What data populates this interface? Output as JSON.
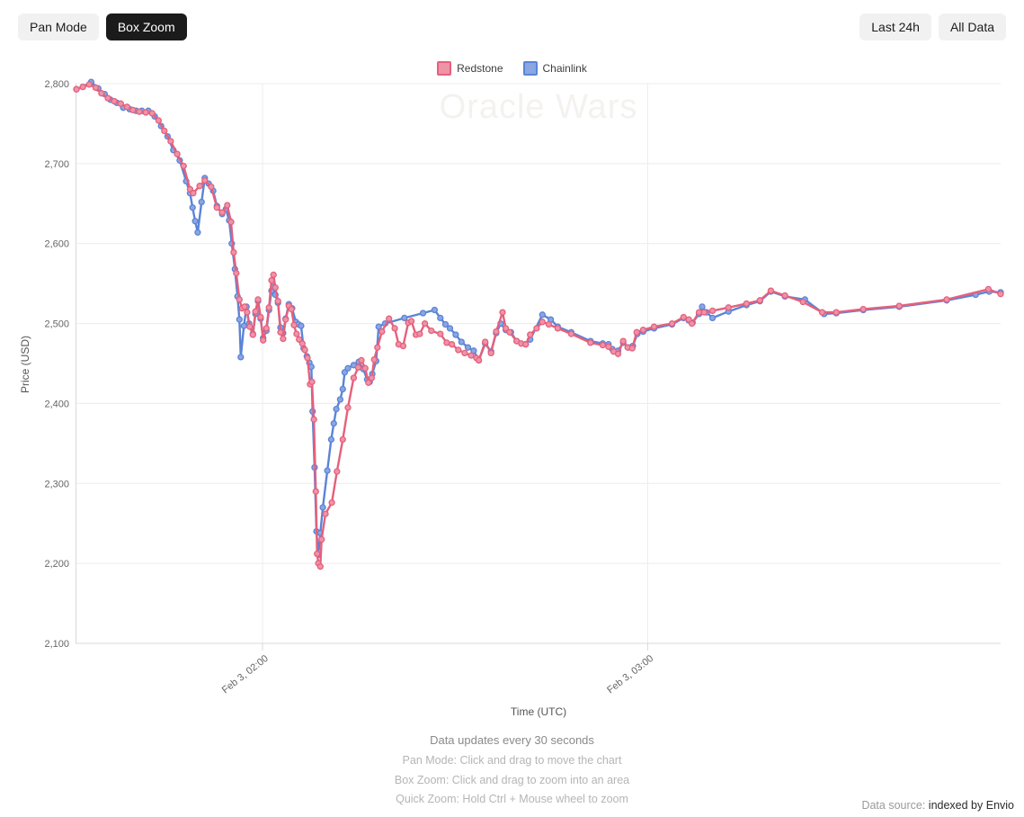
{
  "toolbar": {
    "pan_mode_label": "Pan Mode",
    "box_zoom_label": "Box Zoom",
    "last_24h_label": "Last 24h",
    "all_data_label": "All Data",
    "active_button": "Box Zoom"
  },
  "watermark": "Oracle Wars",
  "colors": {
    "button_bg": "#f1f1f1",
    "button_active_bg": "#1b1b1b",
    "grid": "#ececec",
    "axis_line": "#d9d9d9",
    "redstone": "#e5607c",
    "chainlink": "#5b84d6"
  },
  "footer": {
    "line1": "Data updates every 30 seconds",
    "line2": "Pan Mode: Click and drag to move the chart",
    "line3": "Box Zoom: Click and drag to zoom into an area",
    "line4": "Quick Zoom: Hold Ctrl + Mouse wheel to zoom"
  },
  "datasource": {
    "prefix": "Data source:",
    "text": "indexed by Envio"
  },
  "chart_data": {
    "type": "line",
    "title": "Oracle Wars",
    "xlabel": "Time (UTC)",
    "ylabel": "Price (USD)",
    "x_unit": "minutes after Feb 3 00:00 UTC (data every 30 s)",
    "x_range": [
      91,
      235
    ],
    "y_range": [
      2100,
      2800
    ],
    "y_ticks": [
      2100,
      2200,
      2300,
      2400,
      2500,
      2600,
      2700,
      2800
    ],
    "x_ticks": [
      {
        "t": 120,
        "label": "Feb 3, 02:00"
      },
      {
        "t": 180,
        "label": "Feb 3, 03:00"
      }
    ],
    "grid": true,
    "legend_position": "top",
    "series": [
      {
        "name": "Redstone",
        "color": "#e5607c",
        "point_fill": "#ef93a7",
        "data": [
          [
            91,
            2793
          ],
          [
            92,
            2796
          ],
          [
            93,
            2799
          ],
          [
            94,
            2795
          ],
          [
            94.9,
            2788
          ],
          [
            95.9,
            2782
          ],
          [
            96.9,
            2778
          ],
          [
            97.9,
            2775
          ],
          [
            98.9,
            2771
          ],
          [
            99.8,
            2767
          ],
          [
            100.8,
            2765
          ],
          [
            101.8,
            2764
          ],
          [
            102.8,
            2763
          ],
          [
            103.8,
            2754
          ],
          [
            104.7,
            2741
          ],
          [
            105.7,
            2728
          ],
          [
            106.7,
            2712
          ],
          [
            107.7,
            2697
          ],
          [
            108.7,
            2668
          ],
          [
            109.2,
            2663
          ],
          [
            110.2,
            2672
          ],
          [
            111,
            2679
          ],
          [
            112,
            2671
          ],
          [
            112.9,
            2645
          ],
          [
            113.7,
            2639
          ],
          [
            114.5,
            2648
          ],
          [
            115.1,
            2627
          ],
          [
            115.5,
            2589
          ],
          [
            115.9,
            2563
          ],
          [
            116.4,
            2530
          ],
          [
            116.8,
            2519
          ],
          [
            117.2,
            2521
          ],
          [
            117.6,
            2514
          ],
          [
            118,
            2496
          ],
          [
            118.5,
            2486
          ],
          [
            118.9,
            2515
          ],
          [
            119.3,
            2530
          ],
          [
            119.7,
            2508
          ],
          [
            120.1,
            2479
          ],
          [
            120.6,
            2494
          ],
          [
            121,
            2520
          ],
          [
            121.4,
            2554
          ],
          [
            121.7,
            2561
          ],
          [
            122,
            2545
          ],
          [
            122.4,
            2528
          ],
          [
            122.8,
            2489
          ],
          [
            123.2,
            2481
          ],
          [
            123.6,
            2505
          ],
          [
            124.1,
            2522
          ],
          [
            124.5,
            2518
          ],
          [
            124.9,
            2498
          ],
          [
            125.3,
            2487
          ],
          [
            125.7,
            2480
          ],
          [
            126.2,
            2475
          ],
          [
            126.6,
            2467
          ],
          [
            127,
            2457
          ],
          [
            127.4,
            2424
          ],
          [
            127.7,
            2427
          ],
          [
            128,
            2380
          ],
          [
            128.3,
            2290
          ],
          [
            128.5,
            2212
          ],
          [
            128.7,
            2200
          ],
          [
            129,
            2196
          ],
          [
            129.2,
            2230
          ],
          [
            129.8,
            2262
          ],
          [
            130.8,
            2276
          ],
          [
            131.6,
            2315
          ],
          [
            132.5,
            2355
          ],
          [
            133.3,
            2395
          ],
          [
            134.2,
            2432
          ],
          [
            134.9,
            2445
          ],
          [
            135.4,
            2454
          ],
          [
            136,
            2444
          ],
          [
            136.5,
            2426
          ],
          [
            137,
            2432
          ],
          [
            137.4,
            2455
          ],
          [
            137.9,
            2470
          ],
          [
            138.6,
            2490
          ],
          [
            139.7,
            2506
          ],
          [
            140.6,
            2494
          ],
          [
            141.2,
            2474
          ],
          [
            141.9,
            2472
          ],
          [
            142.7,
            2501
          ],
          [
            143.2,
            2503
          ],
          [
            143.9,
            2486
          ],
          [
            144.5,
            2487
          ],
          [
            145.3,
            2500
          ],
          [
            146.3,
            2491
          ],
          [
            147.7,
            2487
          ],
          [
            148.7,
            2476
          ],
          [
            149.5,
            2474
          ],
          [
            150.5,
            2467
          ],
          [
            151.5,
            2463
          ],
          [
            152.5,
            2460
          ],
          [
            153.3,
            2457
          ],
          [
            153.7,
            2454
          ],
          [
            154.7,
            2477
          ],
          [
            155.6,
            2463
          ],
          [
            156.4,
            2490
          ],
          [
            157.4,
            2514
          ],
          [
            157.9,
            2494
          ],
          [
            158.5,
            2489
          ],
          [
            159.6,
            2478
          ],
          [
            160.3,
            2475
          ],
          [
            161,
            2474
          ],
          [
            161.7,
            2486
          ],
          [
            162.7,
            2494
          ],
          [
            163.6,
            2502
          ],
          [
            164.6,
            2499
          ],
          [
            166,
            2494
          ],
          [
            168.1,
            2487
          ],
          [
            171.1,
            2476
          ],
          [
            173,
            2473
          ],
          [
            173.9,
            2471
          ],
          [
            174.7,
            2465
          ],
          [
            175.4,
            2462
          ],
          [
            176.2,
            2478
          ],
          [
            176.9,
            2470
          ],
          [
            177.6,
            2469
          ],
          [
            178.3,
            2489
          ],
          [
            179.3,
            2492
          ],
          [
            181,
            2496
          ],
          [
            183.8,
            2500
          ],
          [
            185.6,
            2508
          ],
          [
            186.4,
            2505
          ],
          [
            186.9,
            2500
          ],
          [
            188,
            2514
          ],
          [
            188.8,
            2514
          ],
          [
            190.1,
            2516
          ],
          [
            192.6,
            2520
          ],
          [
            195.4,
            2525
          ],
          [
            197.5,
            2529
          ],
          [
            199.2,
            2541
          ],
          [
            201.4,
            2535
          ],
          [
            204.2,
            2527
          ],
          [
            207.2,
            2514
          ],
          [
            209.4,
            2514
          ],
          [
            213.6,
            2518
          ],
          [
            219.2,
            2522
          ],
          [
            226.6,
            2530
          ],
          [
            233.1,
            2543
          ],
          [
            235,
            2537
          ]
        ]
      },
      {
        "name": "Chainlink",
        "color": "#5b84d6",
        "point_fill": "#8aa6e3",
        "data": [
          [
            91,
            2793
          ],
          [
            92,
            2796
          ],
          [
            93.3,
            2802
          ],
          [
            94.4,
            2794
          ],
          [
            95.4,
            2787
          ],
          [
            96.3,
            2780
          ],
          [
            97.3,
            2776
          ],
          [
            98.3,
            2770
          ],
          [
            99.3,
            2768
          ],
          [
            100.3,
            2766
          ],
          [
            101.2,
            2766
          ],
          [
            102.2,
            2766
          ],
          [
            103.2,
            2759
          ],
          [
            104.2,
            2747
          ],
          [
            105.2,
            2734
          ],
          [
            106.1,
            2717
          ],
          [
            107.1,
            2704
          ],
          [
            108.1,
            2678
          ],
          [
            108.7,
            2663
          ],
          [
            109.1,
            2645
          ],
          [
            109.5,
            2628
          ],
          [
            109.9,
            2614
          ],
          [
            110.5,
            2652
          ],
          [
            111,
            2682
          ],
          [
            111.6,
            2675
          ],
          [
            112.3,
            2666
          ],
          [
            112.9,
            2647
          ],
          [
            113.7,
            2637
          ],
          [
            114.3,
            2643
          ],
          [
            114.8,
            2629
          ],
          [
            115.2,
            2600
          ],
          [
            115.7,
            2568
          ],
          [
            116.1,
            2534
          ],
          [
            116.4,
            2505
          ],
          [
            116.6,
            2458
          ],
          [
            117.1,
            2497
          ],
          [
            117.5,
            2521
          ],
          [
            117.9,
            2500
          ],
          [
            118.5,
            2487
          ],
          [
            118.9,
            2512
          ],
          [
            119.3,
            2528
          ],
          [
            119.7,
            2506
          ],
          [
            120.1,
            2482
          ],
          [
            120.6,
            2491
          ],
          [
            121,
            2517
          ],
          [
            121.4,
            2541
          ],
          [
            121.7,
            2546
          ],
          [
            122,
            2536
          ],
          [
            122.4,
            2526
          ],
          [
            122.8,
            2495
          ],
          [
            123.2,
            2488
          ],
          [
            123.6,
            2506
          ],
          [
            124.1,
            2524
          ],
          [
            124.6,
            2519
          ],
          [
            125.2,
            2502
          ],
          [
            125.6,
            2499
          ],
          [
            126,
            2497
          ],
          [
            126.4,
            2469
          ],
          [
            126.9,
            2459
          ],
          [
            127.3,
            2451
          ],
          [
            127.6,
            2446
          ],
          [
            127.8,
            2390
          ],
          [
            128.1,
            2320
          ],
          [
            128.4,
            2240
          ],
          [
            128.7,
            2211
          ],
          [
            129,
            2238
          ],
          [
            129.4,
            2270
          ],
          [
            130.1,
            2316
          ],
          [
            130.7,
            2355
          ],
          [
            131.1,
            2375
          ],
          [
            131.5,
            2393
          ],
          [
            132.1,
            2405
          ],
          [
            132.5,
            2418
          ],
          [
            132.8,
            2439
          ],
          [
            133.3,
            2444
          ],
          [
            134.2,
            2448
          ],
          [
            135,
            2452
          ],
          [
            135.7,
            2443
          ],
          [
            136.3,
            2430
          ],
          [
            136.7,
            2427
          ],
          [
            137.1,
            2437
          ],
          [
            137.7,
            2453
          ],
          [
            138.1,
            2496
          ],
          [
            139.1,
            2500
          ],
          [
            142.1,
            2507
          ],
          [
            145,
            2513
          ],
          [
            146.8,
            2517
          ],
          [
            147.7,
            2507
          ],
          [
            148.5,
            2499
          ],
          [
            149.2,
            2494
          ],
          [
            150.1,
            2486
          ],
          [
            151,
            2477
          ],
          [
            152,
            2470
          ],
          [
            152.9,
            2466
          ],
          [
            153.7,
            2454
          ],
          [
            154.7,
            2475
          ],
          [
            155.6,
            2465
          ],
          [
            156.4,
            2488
          ],
          [
            157.1,
            2500
          ],
          [
            157.9,
            2492
          ],
          [
            158.7,
            2489
          ],
          [
            159.6,
            2478
          ],
          [
            161,
            2474
          ],
          [
            161.7,
            2480
          ],
          [
            163.6,
            2511
          ],
          [
            164.9,
            2505
          ],
          [
            166,
            2496
          ],
          [
            168.1,
            2489
          ],
          [
            171.1,
            2478
          ],
          [
            173,
            2475
          ],
          [
            173.9,
            2474
          ],
          [
            174.5,
            2468
          ],
          [
            175.4,
            2466
          ],
          [
            176.2,
            2476
          ],
          [
            177,
            2470
          ],
          [
            177.7,
            2472
          ],
          [
            178.4,
            2487
          ],
          [
            179.3,
            2490
          ],
          [
            181,
            2494
          ],
          [
            183.8,
            2499
          ],
          [
            185.6,
            2507
          ],
          [
            186.4,
            2504
          ],
          [
            187,
            2501
          ],
          [
            188,
            2512
          ],
          [
            188.5,
            2521
          ],
          [
            189.2,
            2514
          ],
          [
            190.1,
            2507
          ],
          [
            192.6,
            2515
          ],
          [
            195.4,
            2523
          ],
          [
            197.5,
            2528
          ],
          [
            199.2,
            2540
          ],
          [
            201.4,
            2534
          ],
          [
            204.5,
            2530
          ],
          [
            207.5,
            2512
          ],
          [
            209.4,
            2513
          ],
          [
            213.6,
            2517
          ],
          [
            219.2,
            2521
          ],
          [
            226.6,
            2529
          ],
          [
            231.1,
            2536
          ],
          [
            233.2,
            2540
          ],
          [
            235,
            2539
          ]
        ]
      }
    ]
  }
}
